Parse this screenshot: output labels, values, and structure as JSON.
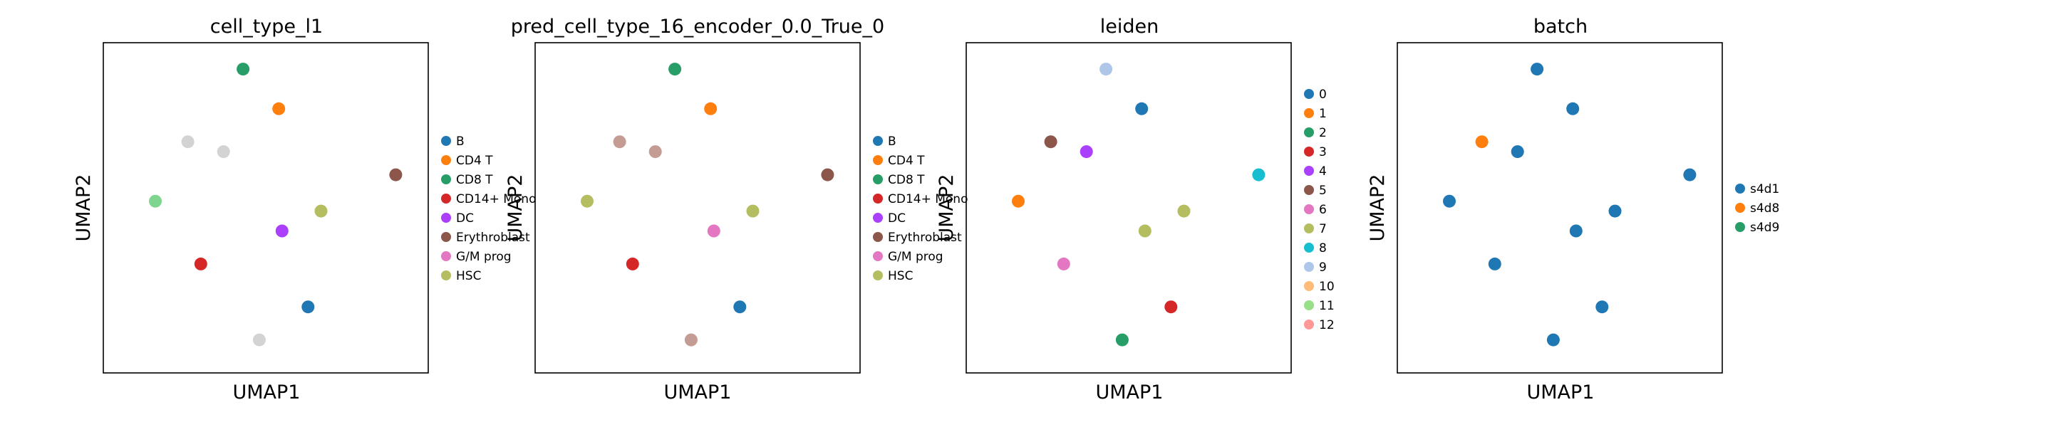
{
  "chart_data": [
    {
      "type": "scatter",
      "title": "cell_type_l1",
      "xlabel": "UMAP1",
      "ylabel": "UMAP2",
      "grid": false,
      "legend_position": "right",
      "legend": [
        {
          "label": "B",
          "color": "#1f77b4"
        },
        {
          "label": "CD4 T",
          "color": "#ff7f0e"
        },
        {
          "label": "CD8 T",
          "color": "#279e68"
        },
        {
          "label": "CD14+ Mono",
          "color": "#d62728"
        },
        {
          "label": "DC",
          "color": "#aa40fc"
        },
        {
          "label": "Erythroblast",
          "color": "#8c564b"
        },
        {
          "label": "G/M prog",
          "color": "#e377c2"
        },
        {
          "label": "HSC",
          "color": "#b5bd61"
        }
      ],
      "unlabeled_color": "#d3d3d3",
      "clusters": [
        {
          "x": 0.43,
          "y": 0.92,
          "label": "CD8 T",
          "color": "#279e68"
        },
        {
          "x": 0.54,
          "y": 0.8,
          "label": "CD4 T",
          "color": "#ff7f0e"
        },
        {
          "x": 0.37,
          "y": 0.67,
          "label": "unlabeled",
          "color": "#d3d3d3"
        },
        {
          "x": 0.26,
          "y": 0.7,
          "label": "unlabeled",
          "color": "#d3d3d3"
        },
        {
          "x": 0.16,
          "y": 0.52,
          "label": "unlabeled",
          "color": "#7fd48e"
        },
        {
          "x": 0.9,
          "y": 0.6,
          "label": "Erythroblast",
          "color": "#8c564b"
        },
        {
          "x": 0.55,
          "y": 0.43,
          "label": "DC",
          "color": "#aa40fc"
        },
        {
          "x": 0.67,
          "y": 0.49,
          "label": "HSC",
          "color": "#b5bd61"
        },
        {
          "x": 0.3,
          "y": 0.33,
          "label": "CD14+ Mono",
          "color": "#d62728"
        },
        {
          "x": 0.63,
          "y": 0.2,
          "label": "B",
          "color": "#1f77b4"
        },
        {
          "x": 0.48,
          "y": 0.1,
          "label": "unlabeled",
          "color": "#d3d3d3"
        }
      ]
    },
    {
      "type": "scatter",
      "title": "pred_cell_type_16_encoder_0.0_True_0",
      "xlabel": "UMAP1",
      "ylabel": "UMAP2",
      "grid": false,
      "legend_position": "right",
      "legend": [
        {
          "label": "B",
          "color": "#1f77b4"
        },
        {
          "label": "CD4 T",
          "color": "#ff7f0e"
        },
        {
          "label": "CD8 T",
          "color": "#279e68"
        },
        {
          "label": "CD14+ Mono",
          "color": "#d62728"
        },
        {
          "label": "DC",
          "color": "#aa40fc"
        },
        {
          "label": "Erythroblast",
          "color": "#8c564b"
        },
        {
          "label": "G/M prog",
          "color": "#e377c2"
        },
        {
          "label": "HSC",
          "color": "#b5bd61"
        }
      ],
      "clusters": [
        {
          "x": 0.43,
          "y": 0.92,
          "label": "CD8 T",
          "color": "#279e68"
        },
        {
          "x": 0.54,
          "y": 0.8,
          "label": "CD4 T",
          "color": "#ff7f0e"
        },
        {
          "x": 0.37,
          "y": 0.67,
          "label": "Erythroblast",
          "color": "#c49c94"
        },
        {
          "x": 0.26,
          "y": 0.7,
          "label": "Erythroblast",
          "color": "#c49c94"
        },
        {
          "x": 0.16,
          "y": 0.52,
          "label": "HSC",
          "color": "#b5bd61"
        },
        {
          "x": 0.9,
          "y": 0.6,
          "label": "Erythroblast",
          "color": "#8c564b"
        },
        {
          "x": 0.55,
          "y": 0.43,
          "label": "G/M prog",
          "color": "#e377c2"
        },
        {
          "x": 0.67,
          "y": 0.49,
          "label": "HSC",
          "color": "#b5bd61"
        },
        {
          "x": 0.3,
          "y": 0.33,
          "label": "CD14+ Mono",
          "color": "#d62728"
        },
        {
          "x": 0.63,
          "y": 0.2,
          "label": "B",
          "color": "#1f77b4"
        },
        {
          "x": 0.48,
          "y": 0.1,
          "label": "Erythroblast",
          "color": "#c49c94"
        }
      ]
    },
    {
      "type": "scatter",
      "title": "leiden",
      "xlabel": "UMAP1",
      "ylabel": "UMAP2",
      "grid": false,
      "legend_position": "right",
      "legend": [
        {
          "label": "0",
          "color": "#1f77b4"
        },
        {
          "label": "1",
          "color": "#ff7f0e"
        },
        {
          "label": "2",
          "color": "#279e68"
        },
        {
          "label": "3",
          "color": "#d62728"
        },
        {
          "label": "4",
          "color": "#aa40fc"
        },
        {
          "label": "5",
          "color": "#8c564b"
        },
        {
          "label": "6",
          "color": "#e377c2"
        },
        {
          "label": "7",
          "color": "#b5bd61"
        },
        {
          "label": "8",
          "color": "#17becf"
        },
        {
          "label": "9",
          "color": "#aec7e8"
        },
        {
          "label": "10",
          "color": "#ffbb78"
        },
        {
          "label": "11",
          "color": "#98df8a"
        },
        {
          "label": "12",
          "color": "#ff9896"
        }
      ],
      "clusters": [
        {
          "x": 0.43,
          "y": 0.92,
          "label": "9",
          "color": "#aec7e8"
        },
        {
          "x": 0.54,
          "y": 0.8,
          "label": "0",
          "color": "#1f77b4"
        },
        {
          "x": 0.37,
          "y": 0.67,
          "label": "4",
          "color": "#aa40fc"
        },
        {
          "x": 0.26,
          "y": 0.7,
          "label": "5",
          "color": "#8c564b"
        },
        {
          "x": 0.16,
          "y": 0.52,
          "label": "1",
          "color": "#ff7f0e"
        },
        {
          "x": 0.9,
          "y": 0.6,
          "label": "8",
          "color": "#17becf"
        },
        {
          "x": 0.55,
          "y": 0.43,
          "label": "7",
          "color": "#b5bd61"
        },
        {
          "x": 0.67,
          "y": 0.49,
          "label": "7",
          "color": "#b5bd61"
        },
        {
          "x": 0.3,
          "y": 0.33,
          "label": "6",
          "color": "#e377c2"
        },
        {
          "x": 0.63,
          "y": 0.2,
          "label": "3",
          "color": "#d62728"
        },
        {
          "x": 0.48,
          "y": 0.1,
          "label": "2",
          "color": "#279e68"
        }
      ]
    },
    {
      "type": "scatter",
      "title": "batch",
      "xlabel": "UMAP1",
      "ylabel": "UMAP2",
      "grid": false,
      "legend_position": "right",
      "legend": [
        {
          "label": "s4d1",
          "color": "#1f77b4"
        },
        {
          "label": "s4d8",
          "color": "#ff7f0e"
        },
        {
          "label": "s4d9",
          "color": "#279e68"
        }
      ],
      "clusters": [
        {
          "x": 0.43,
          "y": 0.92,
          "label": "s4d1",
          "color": "#1f77b4"
        },
        {
          "x": 0.54,
          "y": 0.8,
          "label": "s4d1",
          "color": "#1f77b4"
        },
        {
          "x": 0.37,
          "y": 0.67,
          "label": "s4d1",
          "color": "#1f77b4"
        },
        {
          "x": 0.26,
          "y": 0.7,
          "label": "s4d8",
          "color": "#ff7f0e"
        },
        {
          "x": 0.16,
          "y": 0.52,
          "label": "s4d1",
          "color": "#1f77b4"
        },
        {
          "x": 0.9,
          "y": 0.6,
          "label": "s4d1",
          "color": "#1f77b4"
        },
        {
          "x": 0.55,
          "y": 0.43,
          "label": "s4d1",
          "color": "#1f77b4"
        },
        {
          "x": 0.67,
          "y": 0.49,
          "label": "s4d1",
          "color": "#1f77b4"
        },
        {
          "x": 0.3,
          "y": 0.33,
          "label": "s4d1",
          "color": "#1f77b4"
        },
        {
          "x": 0.63,
          "y": 0.2,
          "label": "s4d1",
          "color": "#1f77b4"
        },
        {
          "x": 0.48,
          "y": 0.1,
          "label": "s4d1",
          "color": "#1f77b4"
        }
      ]
    }
  ]
}
